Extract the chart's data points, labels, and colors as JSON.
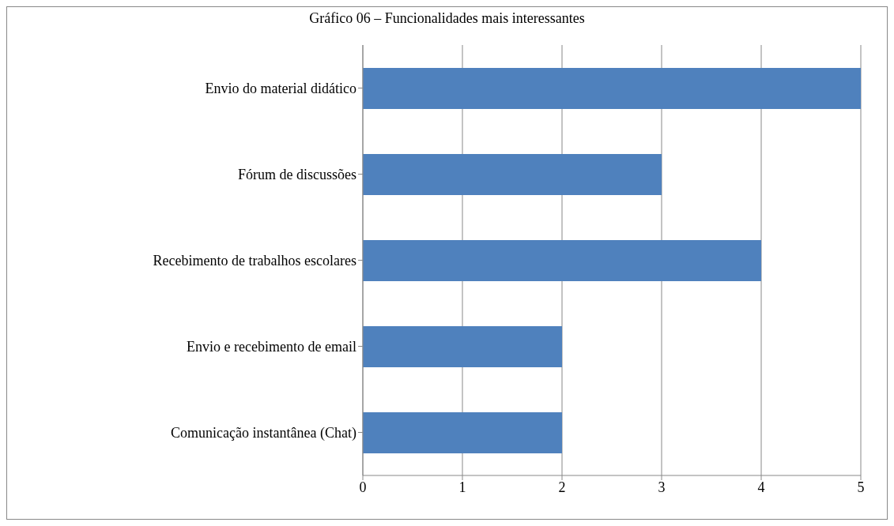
{
  "chart_data": {
    "type": "bar",
    "orientation": "horizontal",
    "title": "Gráfico 06 – Funcionalidades mais interessantes",
    "categories": [
      "Envio do material didático",
      "Fórum de discussões",
      "Recebimento de trabalhos escolares",
      "Envio e recebimento de email",
      "Comunicação instantânea (Chat)"
    ],
    "values": [
      5,
      3,
      4,
      2,
      2
    ],
    "color": "#4f81bd",
    "xlim": [
      0,
      5
    ],
    "xticks": [
      0,
      1,
      2,
      3,
      4,
      5
    ],
    "grid": "x"
  }
}
